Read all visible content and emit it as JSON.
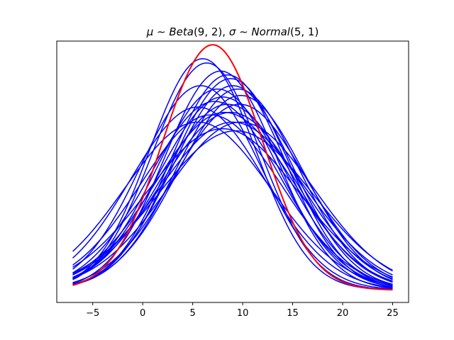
{
  "chart_data": {
    "type": "line",
    "title": "μ ∼ Beta(9, 2), σ ∼ Normal(5, 1)",
    "title_parts": [
      {
        "text": "μ",
        "italic": true
      },
      {
        "text": " ∼ ",
        "italic": false
      },
      {
        "text": "Beta",
        "italic": true
      },
      {
        "text": "(9, 2), ",
        "italic": false
      },
      {
        "text": "σ",
        "italic": true
      },
      {
        "text": " ∼ ",
        "italic": false
      },
      {
        "text": "Normal",
        "italic": true
      },
      {
        "text": "(5, 1)",
        "italic": false
      }
    ],
    "xlabel": "",
    "ylabel": "",
    "xlim": [
      -8.6,
      26.6
    ],
    "ylim": [
      -0.004,
      0.081
    ],
    "x_range": [
      -7,
      25
    ],
    "x_ticks": [
      -5,
      0,
      5,
      10,
      15,
      20,
      25
    ],
    "x_tick_labels": [
      "−5",
      "0",
      "5",
      "10",
      "15",
      "20",
      "25"
    ],
    "y_ticks_visible": false,
    "grid": false,
    "legend": "none",
    "highlight_series": {
      "name": "",
      "mu": 7.0,
      "sigma": 5.0,
      "color": "#ff0000",
      "linewidth": 2
    },
    "sample_series_color": "#0000ff",
    "sample_series": [
      {
        "mu": 6.0,
        "sigma": 5.3
      },
      {
        "mu": 6.4,
        "sigma": 5.4
      },
      {
        "mu": 7.8,
        "sigma": 5.6
      },
      {
        "mu": 8.5,
        "sigma": 5.7
      },
      {
        "mu": 8.8,
        "sigma": 5.8
      },
      {
        "mu": 9.0,
        "sigma": 6.0
      },
      {
        "mu": 5.8,
        "sigma": 6.0
      },
      {
        "mu": 7.5,
        "sigma": 6.1
      },
      {
        "mu": 9.5,
        "sigma": 6.1
      },
      {
        "mu": 9.8,
        "sigma": 6.3
      },
      {
        "mu": 8.0,
        "sigma": 6.35
      },
      {
        "mu": 7.2,
        "sigma": 6.5
      },
      {
        "mu": 9.7,
        "sigma": 6.6
      },
      {
        "mu": 8.5,
        "sigma": 6.6
      },
      {
        "mu": 5.5,
        "sigma": 6.7
      },
      {
        "mu": 8.8,
        "sigma": 6.9
      },
      {
        "mu": 8.2,
        "sigma": 6.9
      },
      {
        "mu": 6.8,
        "sigma": 7.0
      },
      {
        "mu": 9.8,
        "sigma": 7.3
      },
      {
        "mu": 9.0,
        "sigma": 7.3
      },
      {
        "mu": 8.0,
        "sigma": 7.6
      },
      {
        "mu": 9.3,
        "sigma": 7.7
      },
      {
        "mu": 5.5,
        "sigma": 7.3
      }
    ]
  }
}
